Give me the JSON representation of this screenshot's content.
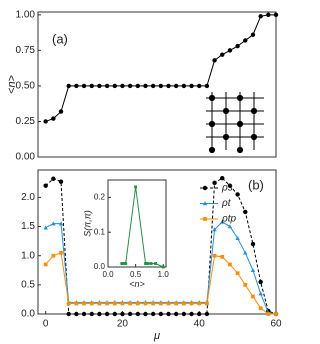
{
  "chart_data": [
    {
      "type": "line",
      "annotation": "(a)",
      "ylabel": "<n>",
      "xlim": [
        -2,
        60
      ],
      "ylim": [
        0,
        1.02
      ],
      "yticks": [
        {
          "value": 0,
          "label": "0.00"
        },
        {
          "value": 0.25,
          "label": "0.25"
        },
        {
          "value": 0.5,
          "label": "0.50"
        },
        {
          "value": 0.75,
          "label": "0.75"
        },
        {
          "value": 1,
          "label": "1.00"
        }
      ],
      "x": [
        0,
        2,
        4,
        6,
        8,
        10,
        12,
        14,
        16,
        18,
        20,
        22,
        24,
        26,
        28,
        30,
        32,
        34,
        36,
        38,
        40,
        42,
        44,
        46,
        48,
        50,
        52,
        54,
        56,
        58,
        60
      ],
      "series": [
        {
          "color": "#000000",
          "marker": "circle",
          "dash": false,
          "values": [
            0.25,
            0.27,
            0.32,
            0.5,
            0.5,
            0.5,
            0.5,
            0.5,
            0.5,
            0.5,
            0.5,
            0.5,
            0.5,
            0.5,
            0.5,
            0.5,
            0.5,
            0.5,
            0.5,
            0.5,
            0.5,
            0.5,
            0.68,
            0.72,
            0.75,
            0.78,
            0.82,
            0.86,
            0.99,
            1.0,
            1.0
          ]
        }
      ]
    },
    {
      "type": "line",
      "annotation": "(b)",
      "xlabel": "μ",
      "legend": "upper right",
      "xlim": [
        -2,
        60
      ],
      "ylim": [
        0,
        2.47
      ],
      "xticks": [
        0,
        20,
        40,
        60
      ],
      "yticks": [
        {
          "value": 0,
          "label": "0.0"
        },
        {
          "value": 0.5,
          "label": "0.5"
        },
        {
          "value": 1,
          "label": "1.0"
        },
        {
          "value": 1.5,
          "label": "1.5"
        },
        {
          "value": 2,
          "label": "2.0"
        }
      ],
      "x": [
        0,
        2,
        4,
        6,
        8,
        10,
        12,
        14,
        16,
        18,
        20,
        22,
        24,
        26,
        28,
        30,
        32,
        34,
        36,
        38,
        40,
        42,
        44,
        46,
        48,
        50,
        52,
        54,
        56,
        58,
        60
      ],
      "series": [
        {
          "name": "ρs",
          "color": "#000000",
          "marker": "circle",
          "dash": true,
          "values": [
            2.2,
            2.32,
            2.27,
            0,
            0,
            0,
            0,
            0,
            0,
            0,
            0,
            0,
            0,
            0,
            0,
            0,
            0,
            0,
            0,
            0,
            0,
            0,
            2.25,
            2.33,
            2.2,
            2.05,
            1.75,
            1.2,
            0.55,
            0.05,
            0
          ]
        },
        {
          "name": "ρt",
          "color": "#1e90e6",
          "marker": "triangle",
          "dash": false,
          "values": [
            1.48,
            1.55,
            1.55,
            0.2,
            0.2,
            0.2,
            0.2,
            0.2,
            0.2,
            0.2,
            0.2,
            0.2,
            0.2,
            0.2,
            0.2,
            0.2,
            0.2,
            0.2,
            0.2,
            0.2,
            0.2,
            0.2,
            1.45,
            1.58,
            1.5,
            1.3,
            1.05,
            0.75,
            0.35,
            0.02,
            0
          ]
        },
        {
          "name": "ρtp",
          "color": "#ff8c00",
          "marker": "square",
          "dash": false,
          "values": [
            0.85,
            1.0,
            1.05,
            0.18,
            0.18,
            0.18,
            0.18,
            0.18,
            0.18,
            0.18,
            0.18,
            0.18,
            0.18,
            0.18,
            0.18,
            0.18,
            0.18,
            0.18,
            0.18,
            0.18,
            0.18,
            0.18,
            1.0,
            0.98,
            0.85,
            0.7,
            0.5,
            0.3,
            0.1,
            0,
            0
          ]
        }
      ]
    },
    {
      "type": "line",
      "xlabel": "<n>",
      "ylabel": "S(π,π)",
      "xlim": [
        0,
        1.05
      ],
      "ylim": [
        0,
        0.25
      ],
      "xticks": [
        {
          "value": 0,
          "label": "0.0"
        },
        {
          "value": 0.5,
          "label": "0.5"
        },
        {
          "value": 1,
          "label": "1.0"
        }
      ],
      "yticks": [
        {
          "value": 0,
          "label": "0.0"
        },
        {
          "value": 0.1,
          "label": "0.1"
        },
        {
          "value": 0.2,
          "label": "0.2"
        }
      ],
      "x": [
        0.25,
        0.27,
        0.32,
        0.5,
        0.68,
        0.72,
        0.78,
        0.86,
        1.0
      ],
      "series": [
        {
          "color": "#1a9641",
          "marker": "square",
          "dash": false,
          "values": [
            0.01,
            0.01,
            0.01,
            0.23,
            0.01,
            0.01,
            0.01,
            0.01,
            0
          ]
        }
      ]
    }
  ]
}
